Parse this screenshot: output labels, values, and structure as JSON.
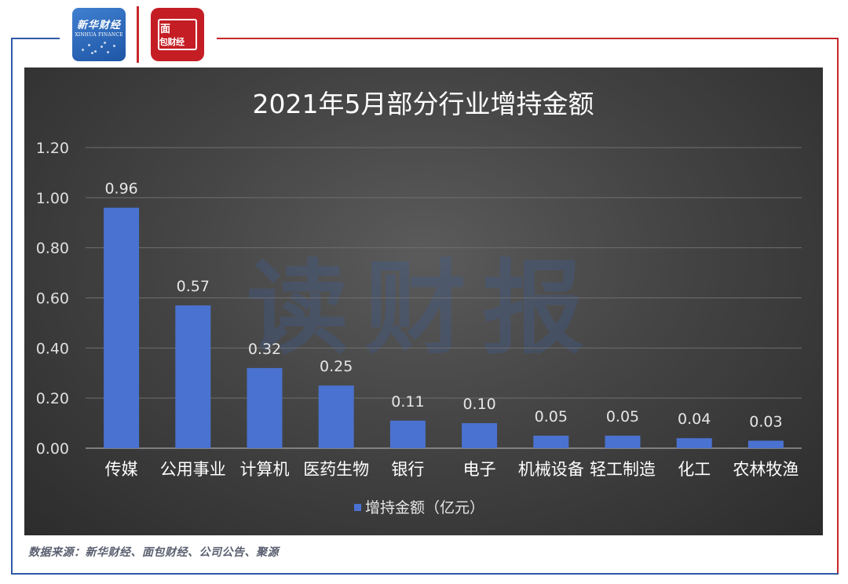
{
  "logos": {
    "xinhua": {
      "cn_text": "新华财经",
      "en_text": "XINHUA FINANCE"
    },
    "mianbao": {
      "line1": "面",
      "line2": "包财经"
    }
  },
  "watermark": "读财报",
  "source_note": "数据来源：新华财经、面包财经、公司公告、聚源",
  "colors": {
    "frame_blue": "#2e5aa6",
    "frame_red": "#c7272c",
    "bar": "#4a72d0",
    "panel_bg": "#444444"
  },
  "chart_data": {
    "type": "bar",
    "title": "2021年5月部分行业增持金额",
    "categories": [
      "传媒",
      "公用事业",
      "计算机",
      "医药生物",
      "银行",
      "电子",
      "机械设备",
      "轻工制造",
      "化工",
      "农林牧渔"
    ],
    "series": [
      {
        "name": "增持金额（亿元）",
        "values": [
          0.96,
          0.57,
          0.32,
          0.25,
          0.11,
          0.1,
          0.05,
          0.05,
          0.04,
          0.03
        ]
      }
    ],
    "value_labels": [
      "0.96",
      "0.57",
      "0.32",
      "0.25",
      "0.11",
      "0.10",
      "0.05",
      "0.05",
      "0.04",
      "0.03"
    ],
    "yticks": [
      "0.00",
      "0.20",
      "0.40",
      "0.60",
      "0.80",
      "1.00",
      "1.20"
    ],
    "ylim": [
      0,
      1.2
    ],
    "xlabel": "",
    "ylabel": "",
    "grid": true,
    "legend_position": "bottom"
  }
}
